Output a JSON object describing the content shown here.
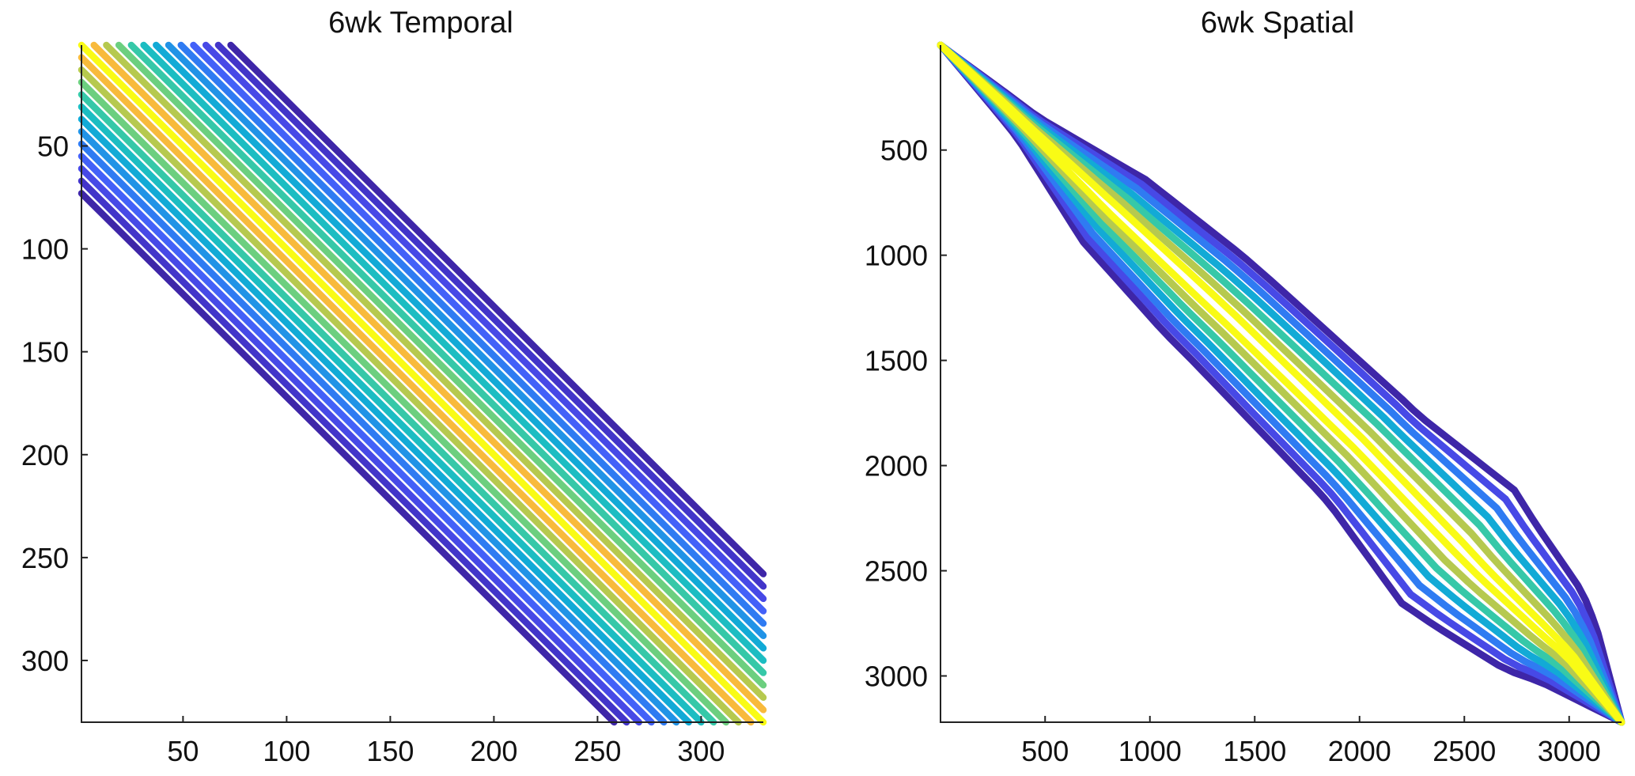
{
  "chart_data": [
    {
      "type": "line",
      "title": "6wk Temporal",
      "xlabel": "",
      "ylabel": "",
      "xlim": [
        1,
        330
      ],
      "ylim": [
        1,
        330
      ],
      "y_reversed": true,
      "xticks": [
        50,
        100,
        150,
        200,
        250,
        300
      ],
      "yticks": [
        50,
        100,
        150,
        200,
        250,
        300
      ],
      "grid": false,
      "colormap": "parula",
      "bands": [
        {
          "offset": -72,
          "color": "#3e26a8"
        },
        {
          "offset": -66,
          "color": "#4235c9"
        },
        {
          "offset": -60,
          "color": "#4749e6"
        },
        {
          "offset": -54,
          "color": "#4361f8"
        },
        {
          "offset": -48,
          "color": "#2f7bf2"
        },
        {
          "offset": -42,
          "color": "#2193e6"
        },
        {
          "offset": -36,
          "color": "#12aad6"
        },
        {
          "offset": -30,
          "color": "#1cbdc2"
        },
        {
          "offset": -24,
          "color": "#36c8a8"
        },
        {
          "offset": -18,
          "color": "#6ccf7f"
        },
        {
          "offset": -12,
          "color": "#b6c94f"
        },
        {
          "offset": -6,
          "color": "#f8ba3c"
        },
        {
          "offset": 0,
          "color": "#f9fb15"
        },
        {
          "offset": 6,
          "color": "#f8ba3c"
        },
        {
          "offset": 12,
          "color": "#b6c94f"
        },
        {
          "offset": 18,
          "color": "#6ccf7f"
        },
        {
          "offset": 24,
          "color": "#36c8a8"
        },
        {
          "offset": 30,
          "color": "#1cbdc2"
        },
        {
          "offset": 36,
          "color": "#12aad6"
        },
        {
          "offset": 42,
          "color": "#2193e6"
        },
        {
          "offset": 48,
          "color": "#2f7bf2"
        },
        {
          "offset": 54,
          "color": "#4361f8"
        },
        {
          "offset": 60,
          "color": "#4749e6"
        },
        {
          "offset": 66,
          "color": "#4235c9"
        },
        {
          "offset": 72,
          "color": "#3e26a8"
        }
      ]
    },
    {
      "type": "line",
      "title": "6wk Spatial",
      "xlabel": "",
      "ylabel": "",
      "xlim": [
        1,
        3250
      ],
      "ylim": [
        1,
        3220
      ],
      "y_reversed": true,
      "xticks": [
        500,
        1000,
        1500,
        2000,
        2500,
        3000
      ],
      "yticks": [
        500,
        1000,
        1500,
        2000,
        2500,
        3000
      ],
      "grid": false,
      "colormap": "parula",
      "ridge": [
        [
          1,
          1
        ],
        [
          300,
          280
        ],
        [
          800,
          760
        ],
        [
          1400,
          1320
        ],
        [
          2000,
          1900
        ],
        [
          2600,
          2520
        ],
        [
          3000,
          2900
        ],
        [
          3250,
          3220
        ]
      ],
      "contours": [
        {
          "color": "#3e26a8",
          "width": [
            0,
            140,
            420,
            520,
            560,
            600,
            760,
            520,
            0
          ]
        },
        {
          "color": "#4749e6",
          "width": [
            0,
            120,
            360,
            450,
            490,
            520,
            640,
            440,
            0
          ]
        },
        {
          "color": "#2f7bf2",
          "width": [
            0,
            100,
            300,
            380,
            410,
            440,
            520,
            360,
            0
          ]
        },
        {
          "color": "#12aad6",
          "width": [
            0,
            80,
            230,
            300,
            330,
            350,
            400,
            280,
            0
          ]
        },
        {
          "color": "#36c8a8",
          "width": [
            0,
            60,
            170,
            220,
            240,
            260,
            290,
            200,
            0
          ]
        },
        {
          "color": "#b6c94f",
          "width": [
            0,
            40,
            110,
            140,
            150,
            160,
            180,
            120,
            0
          ]
        },
        {
          "color": "#f9fb15",
          "width": [
            0,
            18,
            50,
            60,
            60,
            60,
            60,
            40,
            0
          ]
        }
      ]
    }
  ]
}
